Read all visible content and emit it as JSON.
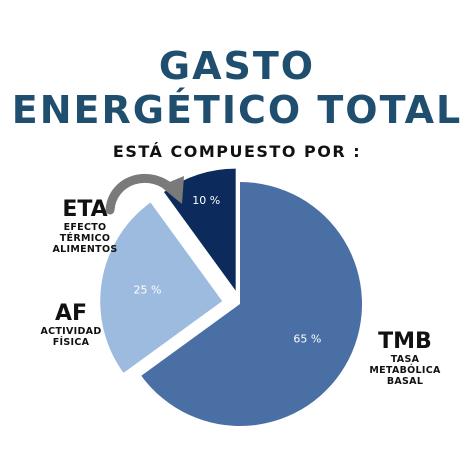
{
  "title": {
    "line1": "GASTO",
    "line2": "ENERGÉTICO TOTAL",
    "subtitle": "ESTÁ COMPUESTO POR :"
  },
  "labels": {
    "eta": {
      "abbr": "ETA",
      "desc": [
        "EFECTO",
        "TÉRMICO",
        "ALIMENTOS"
      ]
    },
    "af": {
      "abbr": "AF",
      "desc": [
        "ACTIVIDAD",
        "FÍSICA"
      ]
    },
    "tmb": {
      "abbr": "TMB",
      "desc": [
        "TASA",
        "METABÓLICA",
        "BASAL"
      ]
    }
  },
  "chart_data": {
    "type": "pie",
    "categories": [
      "TMB",
      "AF",
      "ETA"
    ],
    "values": [
      65,
      25,
      10
    ],
    "value_labels": [
      "65 %",
      "25 %",
      "10 %"
    ],
    "colors": [
      "#4a6fa5",
      "#9dbbdf",
      "#0d2a5c"
    ],
    "exploded": true,
    "legend": "none"
  },
  "colors": {
    "title": "#1f4e6e",
    "arrow": "#7a7a7a"
  },
  "icons": [
    "curved-arrow-icon"
  ]
}
